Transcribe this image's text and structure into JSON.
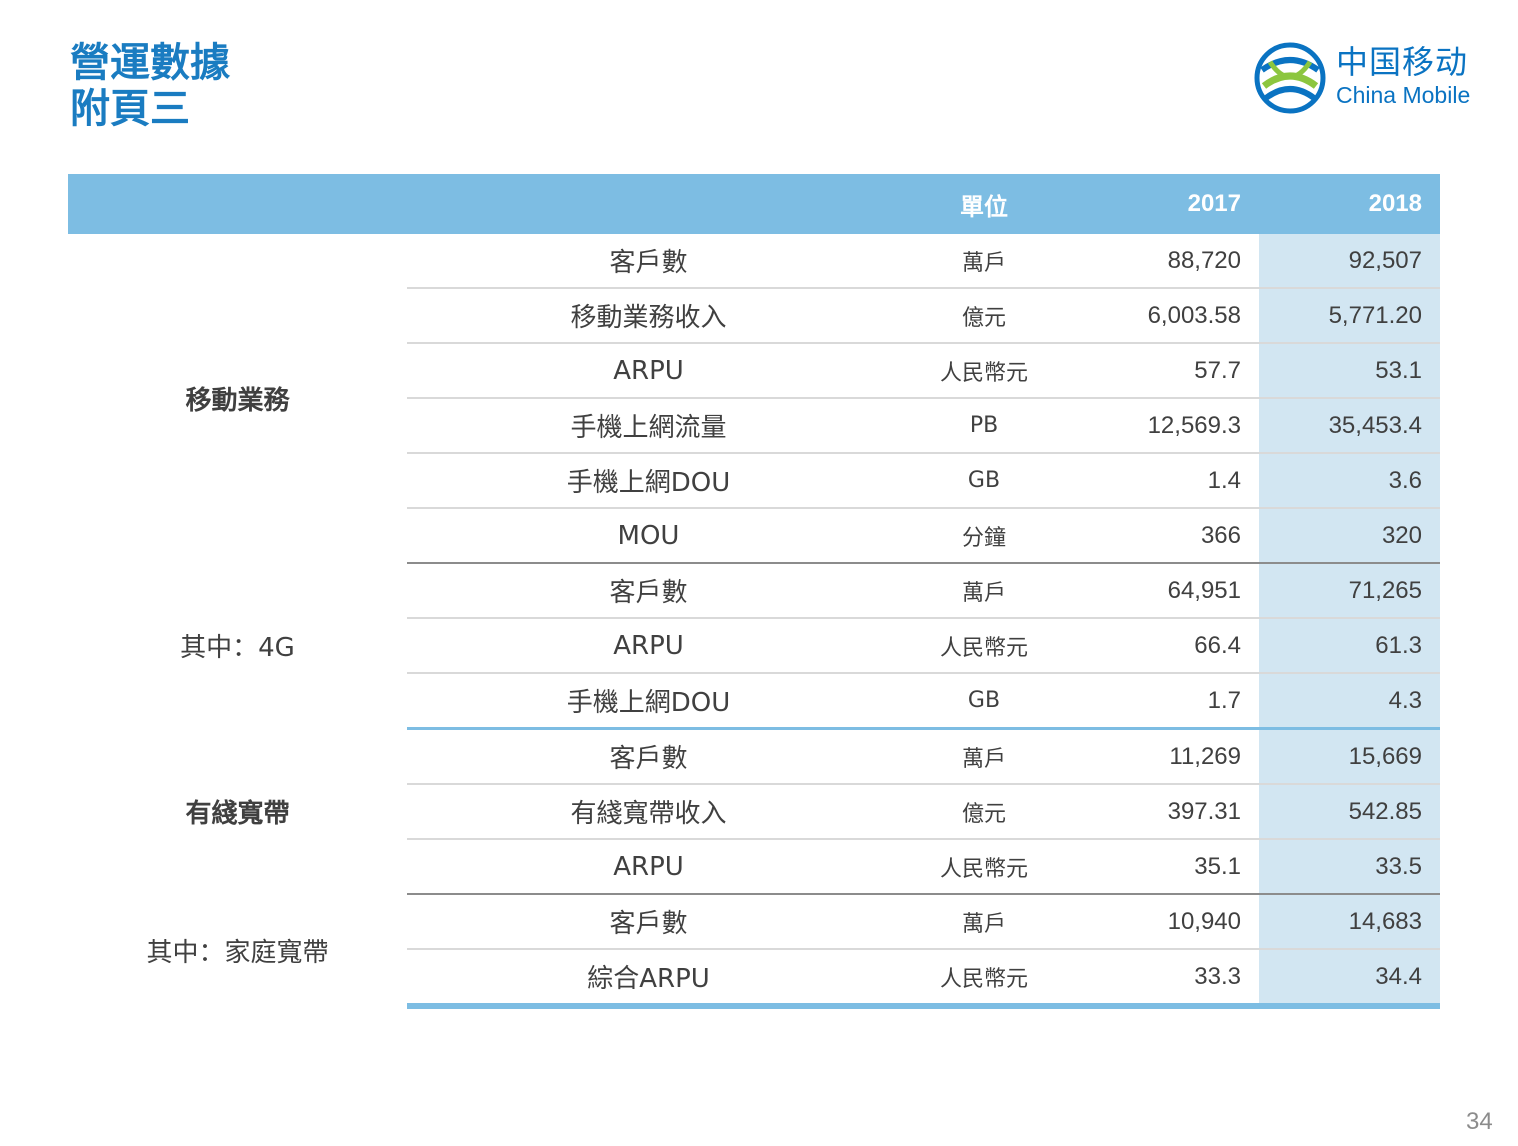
{
  "title": {
    "line1": "營運數據",
    "line2": "附頁三"
  },
  "logo": {
    "icon": "china-mobile-logo-icon",
    "cn": "中国移动",
    "en": "China Mobile"
  },
  "table": {
    "headers": {
      "category": "",
      "metric": "",
      "unit": "單位",
      "y2017": "2017",
      "y2018": "2018"
    },
    "groups": [
      {
        "name": "移動業務",
        "bold": true,
        "rows": [
          {
            "metric": "客戶數",
            "unit": "萬戶",
            "v2017": "88,720",
            "v2018": "92,507"
          },
          {
            "metric": "移動業務收入",
            "unit": "億元",
            "v2017": "6,003.58",
            "v2018": "5,771.20"
          },
          {
            "metric": "ARPU",
            "unit": "人民幣元",
            "v2017": "57.7",
            "v2018": "53.1"
          },
          {
            "metric": "手機上網流量",
            "unit": "PB",
            "v2017": "12,569.3",
            "v2018": "35,453.4"
          },
          {
            "metric": "手機上網DOU",
            "unit": "GB",
            "v2017": "1.4",
            "v2018": "3.6"
          },
          {
            "metric": "MOU",
            "unit": "分鐘",
            "v2017": "366",
            "v2018": "320"
          }
        ]
      },
      {
        "name": "其中：4G",
        "bold": false,
        "rows": [
          {
            "metric": "客戶數",
            "unit": "萬戶",
            "v2017": "64,951",
            "v2018": "71,265"
          },
          {
            "metric": "ARPU",
            "unit": "人民幣元",
            "v2017": "66.4",
            "v2018": "61.3"
          },
          {
            "metric": "手機上網DOU",
            "unit": "GB",
            "v2017": "1.7",
            "v2018": "4.3"
          }
        ]
      },
      {
        "name": "有綫寬帶",
        "bold": true,
        "rows": [
          {
            "metric": "客戶數",
            "unit": "萬戶",
            "v2017": "11,269",
            "v2018": "15,669"
          },
          {
            "metric": "有綫寬帶收入",
            "unit": "億元",
            "v2017": "397.31",
            "v2018": "542.85"
          },
          {
            "metric": "ARPU",
            "unit": "人民幣元",
            "v2017": "35.1",
            "v2018": "33.5"
          }
        ]
      },
      {
        "name": "其中：家庭寬帶",
        "bold": false,
        "rows": [
          {
            "metric": "客戶數",
            "unit": "萬戶",
            "v2017": "10,940",
            "v2018": "14,683"
          },
          {
            "metric": "綜合ARPU",
            "unit": "人民幣元",
            "v2017": "33.3",
            "v2018": "34.4"
          }
        ]
      }
    ]
  },
  "page_number": "34",
  "colors": {
    "title": "#1a7cc1",
    "header_bg": "#7dbde3",
    "highlight_col": "#d2e6f2",
    "logo_green": "#8cc63f",
    "logo_blue": "#0a73c2"
  }
}
